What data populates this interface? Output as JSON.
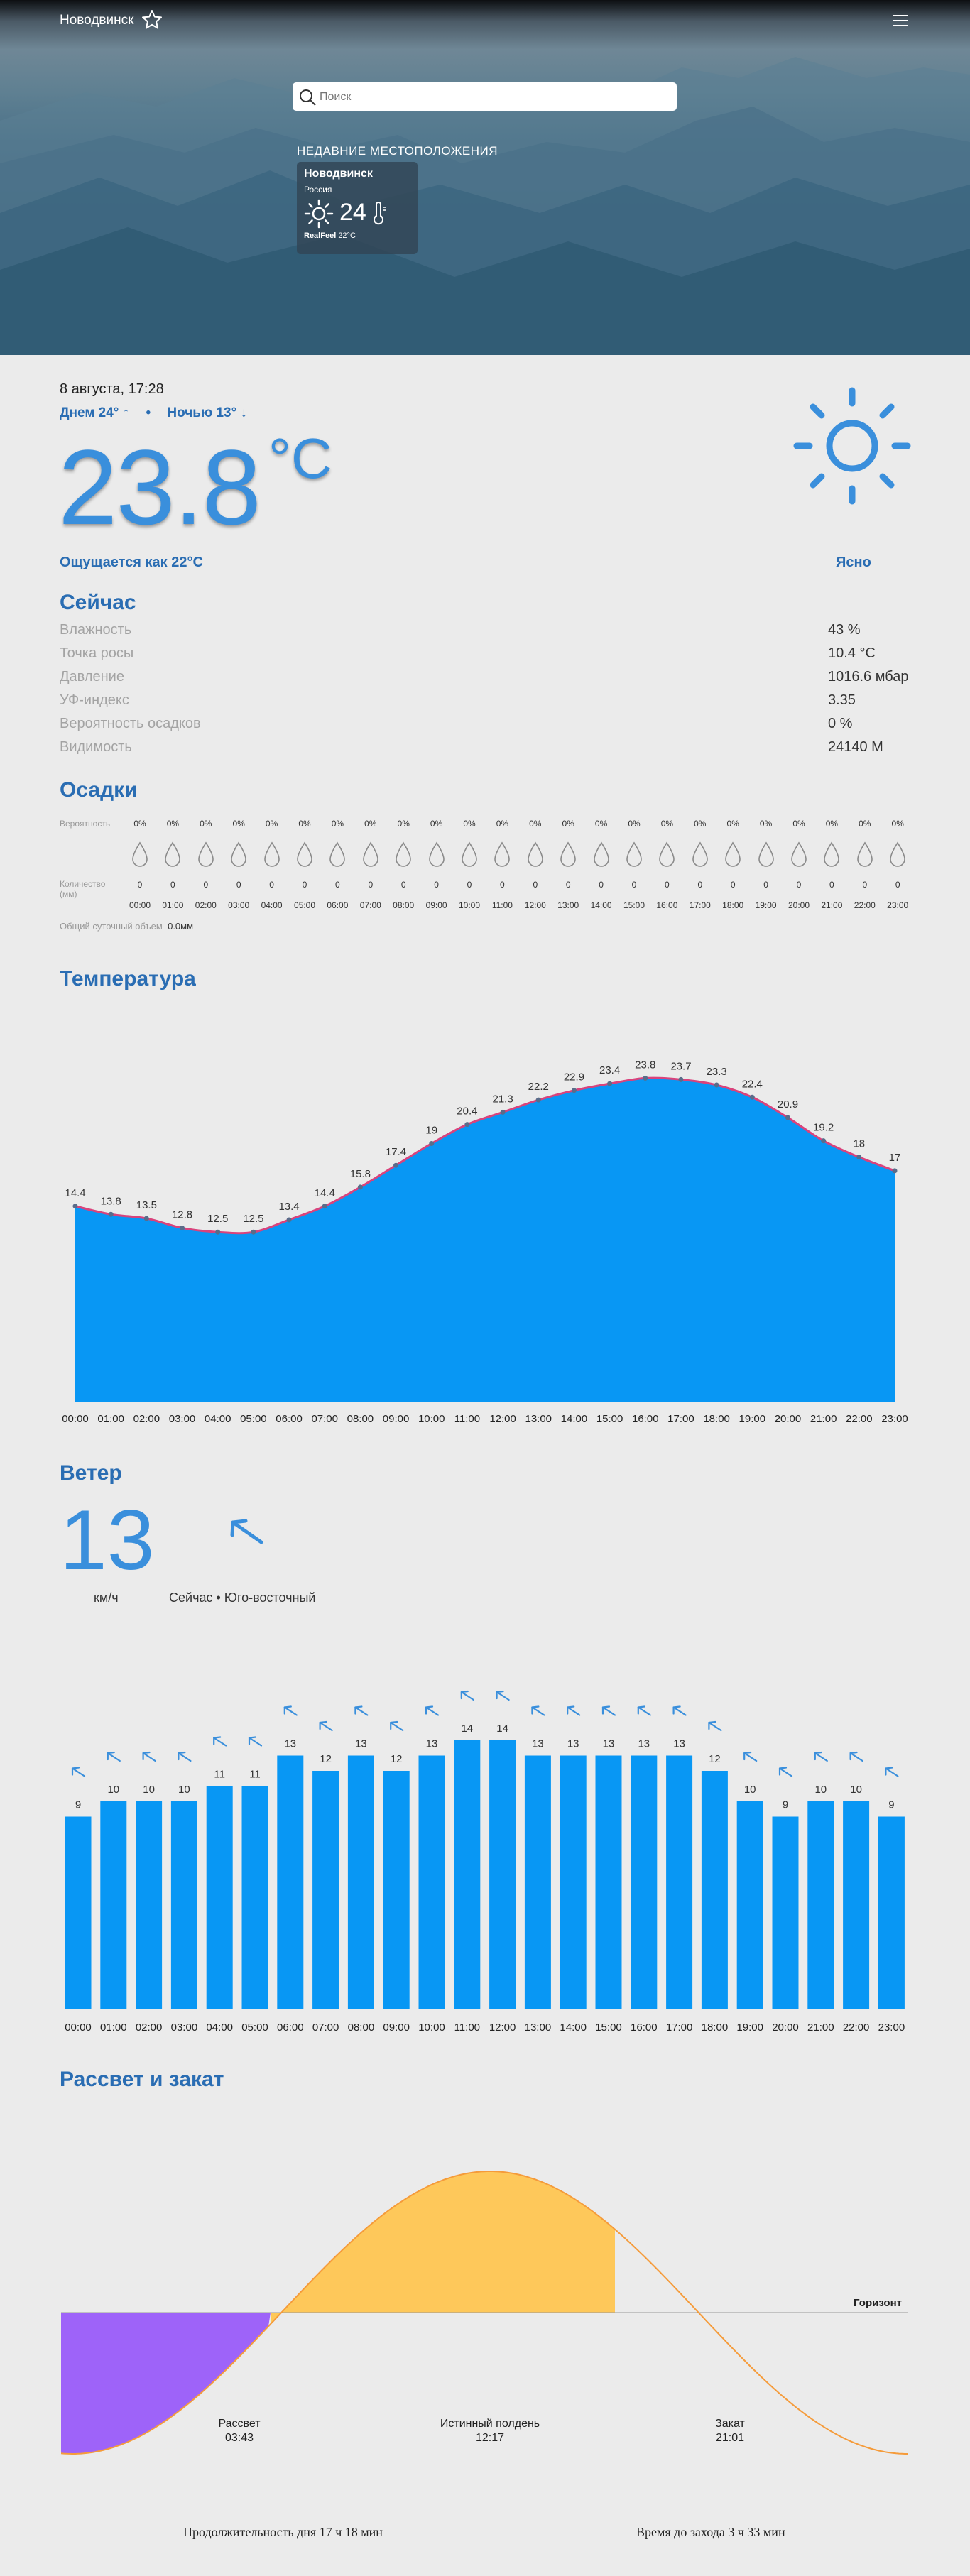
{
  "header": {
    "city": "Новодвинск",
    "search_placeholder": "Поиск",
    "recent_title": "НЕДАВНИЕ МЕСТОПОЛОЖЕНИЯ",
    "recent": {
      "city": "Новодвинск",
      "country": "Россия",
      "temp": "24",
      "realfeel_label": "RealFeel",
      "realfeel_value": "22°C"
    }
  },
  "current": {
    "datetime": "8 августа, 17:28",
    "day": "Днем 24°",
    "night": "Ночью 13°",
    "temp": "23.8",
    "unit": "°C",
    "feels": "Ощущается как 22°C",
    "condition": "Ясно"
  },
  "details": {
    "title": "Сейчас",
    "rows": [
      {
        "label": "Влажность",
        "value": "43 %"
      },
      {
        "label": "Точка росы",
        "value": "10.4 °C"
      },
      {
        "label": "Давление",
        "value": "1016.6 мбар"
      },
      {
        "label": "УФ-индекс",
        "value": "3.35"
      },
      {
        "label": "Вероятность осадков",
        "value": "0 %"
      },
      {
        "label": "Видимость",
        "value": "24140 M"
      }
    ]
  },
  "precip": {
    "title": "Осадки",
    "prob_label": "Вероятность",
    "amount_label": "Количество (мм)",
    "daily_label": "Общий суточный объем",
    "daily_value": "0.0мм",
    "probs": [
      "0%",
      "0%",
      "0%",
      "0%",
      "0%",
      "0%",
      "0%",
      "0%",
      "0%",
      "0%",
      "0%",
      "0%",
      "0%",
      "0%",
      "0%",
      "0%",
      "0%",
      "0%",
      "0%",
      "0%",
      "0%",
      "0%",
      "0%",
      "0%"
    ],
    "amounts": [
      "0",
      "0",
      "0",
      "0",
      "0",
      "0",
      "0",
      "0",
      "0",
      "0",
      "0",
      "0",
      "0",
      "0",
      "0",
      "0",
      "0",
      "0",
      "0",
      "0",
      "0",
      "0",
      "0",
      "0"
    ]
  },
  "hours": [
    "00:00",
    "01:00",
    "02:00",
    "03:00",
    "04:00",
    "05:00",
    "06:00",
    "07:00",
    "08:00",
    "09:00",
    "10:00",
    "11:00",
    "12:00",
    "13:00",
    "14:00",
    "15:00",
    "16:00",
    "17:00",
    "18:00",
    "19:00",
    "20:00",
    "21:00",
    "22:00",
    "23:00"
  ],
  "chart_data": [
    {
      "type": "area",
      "title": "Температура",
      "x": [
        "00:00",
        "01:00",
        "02:00",
        "03:00",
        "04:00",
        "05:00",
        "06:00",
        "07:00",
        "08:00",
        "09:00",
        "10:00",
        "11:00",
        "12:00",
        "13:00",
        "14:00",
        "15:00",
        "16:00",
        "17:00",
        "18:00",
        "19:00",
        "20:00",
        "21:00",
        "22:00",
        "23:00"
      ],
      "values": [
        14.4,
        13.8,
        13.5,
        12.8,
        12.5,
        12.5,
        13.4,
        14.4,
        15.8,
        17.4,
        19,
        20.4,
        21.3,
        22.2,
        22.9,
        23.4,
        23.8,
        23.7,
        23.3,
        22.4,
        20.9,
        19.2,
        18,
        17
      ],
      "fill": "#0897f4",
      "line": "#d9437c"
    },
    {
      "type": "bar",
      "title": "Ветер",
      "x": [
        "00:00",
        "01:00",
        "02:00",
        "03:00",
        "04:00",
        "05:00",
        "06:00",
        "07:00",
        "08:00",
        "09:00",
        "10:00",
        "11:00",
        "12:00",
        "13:00",
        "14:00",
        "15:00",
        "16:00",
        "17:00",
        "18:00",
        "19:00",
        "20:00",
        "21:00",
        "22:00",
        "23:00"
      ],
      "values": [
        9,
        10,
        10,
        10,
        11,
        11,
        13,
        12,
        13,
        12,
        13,
        14,
        14,
        13,
        13,
        13,
        13,
        13,
        12,
        10,
        9,
        10,
        10,
        9
      ],
      "color": "#0897f4"
    }
  ],
  "wind": {
    "title": "Ветер",
    "speed": "13",
    "unit": "км/ч",
    "now": "Сейчас • Юго-восточный"
  },
  "sun": {
    "title": "Рассвет и закат",
    "horizon": "Горизонт",
    "sunrise_label": "Рассвет",
    "sunrise": "03:43",
    "noon_label": "Истинный полдень",
    "noon": "12:17",
    "sunset_label": "Закат",
    "sunset": "21:01",
    "day_length": "Продолжительность дня 17 ч 18 мин",
    "to_sunset": "Время до захода 3 ч 33 мин",
    "colors": {
      "day": "#fec85a",
      "night": "#9e63f9",
      "line": "#f59b3a"
    }
  }
}
